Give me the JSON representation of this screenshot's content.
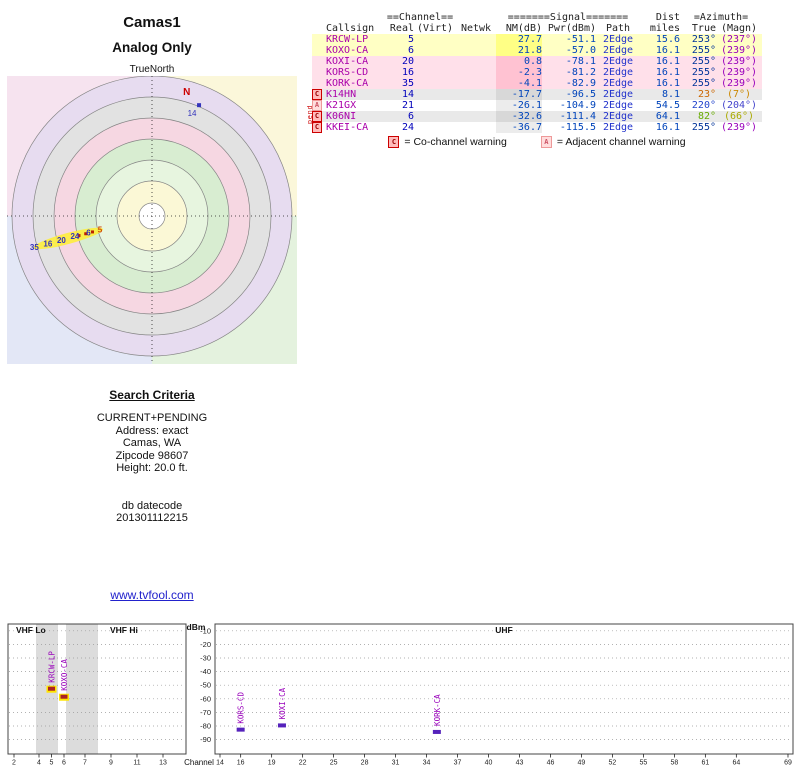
{
  "header": {
    "title": "Camas1",
    "subtitle": "Analog Only",
    "north_label": "TrueNorth"
  },
  "table": {
    "header_groups": [
      "==Channel==",
      "=======Signal=======",
      "Dist",
      "=Azimuth="
    ],
    "columns": [
      "Callsign",
      "Real",
      "(Virt)",
      "Netwk",
      "NM(dB)",
      "Pwr(dBm)",
      "Path",
      "miles",
      "True",
      "(Magn)"
    ],
    "colors": {
      "callsign": "#aa00aa",
      "channel": "#0000bb",
      "value": "#0044bb",
      "path": "#2233cc"
    },
    "pending_label": "pend",
    "rows": [
      {
        "callsign": "KRCW-LP",
        "real": "5",
        "virt": "",
        "netwk": "",
        "nm": "27.7",
        "pwr": "-51.1",
        "path": "2Edge",
        "miles": "15.6",
        "az_true": "253°",
        "az_magn": "(237°)",
        "bg": "#ffffc4",
        "nm_bg": "#ffff85",
        "true_color": "#003399",
        "magn_color": "#9900bb",
        "warnings": []
      },
      {
        "callsign": "KOXO-CA",
        "real": "6",
        "virt": "",
        "netwk": "",
        "nm": "21.8",
        "pwr": "-57.0",
        "path": "2Edge",
        "miles": "16.1",
        "az_true": "255°",
        "az_magn": "(239°)",
        "bg": "#ffffc4",
        "nm_bg": "#ffff85",
        "true_color": "#003399",
        "magn_color": "#9900bb",
        "warnings": []
      },
      {
        "callsign": "KOXI-CA",
        "real": "20",
        "virt": "",
        "netwk": "",
        "nm": "0.8",
        "pwr": "-78.1",
        "path": "2Edge",
        "miles": "16.1",
        "az_true": "255°",
        "az_magn": "(239°)",
        "bg": "#ffe0ea",
        "nm_bg": "#ffc2d2",
        "true_color": "#003399",
        "magn_color": "#9900bb",
        "warnings": []
      },
      {
        "callsign": "KORS-CD",
        "real": "16",
        "virt": "",
        "netwk": "",
        "nm": "-2.3",
        "pwr": "-81.2",
        "path": "2Edge",
        "miles": "16.1",
        "az_true": "255°",
        "az_magn": "(239°)",
        "bg": "#ffe0ea",
        "nm_bg": "#ffc2d2",
        "true_color": "#003399",
        "magn_color": "#9900bb",
        "warnings": []
      },
      {
        "callsign": "KORK-CA",
        "real": "35",
        "virt": "",
        "netwk": "",
        "nm": "-4.1",
        "pwr": "-82.9",
        "path": "2Edge",
        "miles": "16.1",
        "az_true": "255°",
        "az_magn": "(239°)",
        "bg": "#ffe0ea",
        "nm_bg": "#ffc2d2",
        "true_color": "#003399",
        "magn_color": "#9900bb",
        "warnings": []
      },
      {
        "callsign": "K14HN",
        "real": "14",
        "virt": "",
        "netwk": "",
        "nm": "-17.7",
        "pwr": "-96.5",
        "path": "2Edge",
        "miles": "8.1",
        "az_true": "23°",
        "az_magn": "(7°)",
        "bg": "#e9e9e9",
        "nm_bg": "#d8d8d8",
        "true_color": "#cc6600",
        "magn_color": "#cc8800",
        "warnings": [
          "C"
        ]
      },
      {
        "callsign": "K21GX",
        "real": "21",
        "virt": "",
        "netwk": "",
        "nm": "-26.1",
        "pwr": "-104.9",
        "path": "2Edge",
        "miles": "54.5",
        "az_true": "220°",
        "az_magn": "(204°)",
        "bg": "#ffffff",
        "nm_bg": "#ececec",
        "true_color": "#2244cc",
        "magn_color": "#4444cc",
        "warnings": [
          "A"
        ]
      },
      {
        "callsign": "K06NI",
        "real": "6",
        "virt": "",
        "netwk": "",
        "nm": "-32.6",
        "pwr": "-111.4",
        "path": "2Edge",
        "miles": "64.1",
        "az_true": "82°",
        "az_magn": "(66°)",
        "bg": "#e9e9e9",
        "nm_bg": "#d8d8d8",
        "true_color": "#66aa00",
        "magn_color": "#aaaa00",
        "warnings": [
          "C"
        ]
      },
      {
        "callsign": "KKEI-CA",
        "real": "24",
        "virt": "",
        "netwk": "",
        "nm": "-36.7",
        "pwr": "-115.5",
        "path": "2Edge",
        "miles": "16.1",
        "az_true": "255°",
        "az_magn": "(239°)",
        "bg": "#ffffff",
        "nm_bg": "#ececec",
        "true_color": "#003399",
        "magn_color": "#9900bb",
        "warnings": [
          "C"
        ]
      }
    ],
    "legend": {
      "c_badge": "C",
      "c_text": "= Co-channel warning",
      "a_badge": "A",
      "a_text": "= Adjacent channel warning"
    }
  },
  "search": {
    "title": "Search Criteria",
    "lines": [
      "CURRENT+PENDING",
      "Address: exact",
      "Camas, WA",
      "Zipcode 98607",
      "Height: 20.0 ft.",
      "",
      "",
      "db datecode",
      "201301112215"
    ]
  },
  "link": {
    "label": "www.tvfool.com"
  },
  "chart_data": [
    {
      "type": "radar",
      "title": "Camas1",
      "subtitle": "Analog Only",
      "orientation_label": "TrueNorth",
      "magnetic_north": {
        "label": "N",
        "azimuth_deg": 16,
        "color": "#cc0000"
      },
      "ring_colors": [
        "#e7dcf0",
        "#e2e2e2",
        "#f6d7e2",
        "#d8edd1",
        "#e7f5df",
        "#fbf8d6"
      ],
      "quadrant_colors": {
        "tl": "#f6e3ef",
        "tr": "#fbf7da",
        "br": "#e4f2de",
        "bl": "#e3e7f6"
      },
      "markers": [
        {
          "label": "14",
          "azimuth_deg": 23,
          "radius_frac": 0.86,
          "color": "#3333bb"
        }
      ],
      "cluster": {
        "azimuth_deg": 255,
        "highlight_color": "#ffee33",
        "label_color": "#3333bb",
        "dot_color": "#bb2200",
        "labels": [
          {
            "text": "35",
            "radius_frac": 0.87
          },
          {
            "text": "16",
            "radius_frac": 0.77
          },
          {
            "text": "20",
            "radius_frac": 0.67
          },
          {
            "text": "24",
            "radius_frac": 0.57
          },
          {
            "text": "6",
            "radius_frac": 0.47
          },
          {
            "text": "5",
            "radius_frac": 0.385,
            "color": "#cc4400"
          }
        ],
        "dot_radius_fracs": [
          0.44,
          0.49,
          0.54
        ]
      },
      "stations": [
        {
          "callsign": "KRCW-LP",
          "channel": 5,
          "azimuth_true_deg": 253,
          "miles": 15.6
        },
        {
          "callsign": "KOXO-CA",
          "channel": 6,
          "azimuth_true_deg": 255,
          "miles": 16.1
        },
        {
          "callsign": "KOXI-CA",
          "channel": 20,
          "azimuth_true_deg": 255,
          "miles": 16.1
        },
        {
          "callsign": "KORS-CD",
          "channel": 16,
          "azimuth_true_deg": 255,
          "miles": 16.1
        },
        {
          "callsign": "KORK-CA",
          "channel": 35,
          "azimuth_true_deg": 255,
          "miles": 16.1
        },
        {
          "callsign": "K14HN",
          "channel": 14,
          "azimuth_true_deg": 23,
          "miles": 8.1
        },
        {
          "callsign": "K21GX",
          "channel": 21,
          "azimuth_true_deg": 220,
          "miles": 54.5
        },
        {
          "callsign": "K06NI",
          "channel": 6,
          "azimuth_true_deg": 82,
          "miles": 64.1
        },
        {
          "callsign": "KKEI-CA",
          "channel": 24,
          "azimuth_true_deg": 255,
          "miles": 16.1
        }
      ]
    },
    {
      "type": "bar",
      "ylabel": "dBm",
      "xlabel": "Channel",
      "ylim": [
        -95,
        -5
      ],
      "yticks": [
        -10,
        -20,
        -30,
        -40,
        -50,
        -60,
        -70,
        -80,
        -90
      ],
      "panels": [
        {
          "label": "VHF",
          "sections": [
            "VHF Lo",
            "VHF Hi"
          ],
          "channels": [
            2,
            4,
            5,
            6,
            7,
            9,
            11,
            13
          ]
        },
        {
          "label": "UHF",
          "channels": [
            14,
            16,
            19,
            22,
            25,
            28,
            31,
            34,
            37,
            40,
            43,
            46,
            49,
            52,
            55,
            58,
            61,
            64,
            69
          ]
        }
      ],
      "bars": [
        {
          "callsign": "KRCW-LP",
          "channel": 5,
          "dbm": -51.1,
          "band": "vhf"
        },
        {
          "callsign": "KOXO-CA",
          "channel": 6,
          "dbm": -57.0,
          "band": "vhf"
        },
        {
          "callsign": "KORS-CD",
          "channel": 16,
          "dbm": -81.2,
          "band": "uhf"
        },
        {
          "callsign": "KOXI-CA",
          "channel": 20,
          "dbm": -78.1,
          "band": "uhf"
        },
        {
          "callsign": "KORK-CA",
          "channel": 35,
          "dbm": -82.9,
          "band": "uhf"
        }
      ],
      "colors": {
        "vhf_bar": "#aa2222",
        "vhf_highlight": "#ffe400",
        "uhf_bar": "#5522bb",
        "bar_label": "#9900bb"
      }
    }
  ]
}
